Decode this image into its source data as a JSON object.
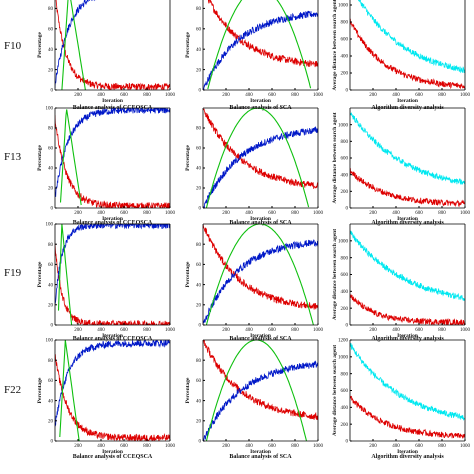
{
  "figure": {
    "row_labels": [
      "F10",
      "F13",
      "F19",
      "F22"
    ],
    "colors": {
      "exploration": "#dd0000",
      "exploitation": "#0018c8",
      "incremental_decremental": "#10c010",
      "diversity_ccesqsca": "#dd0000",
      "diversity_sca": "#00e8f0",
      "axes": "#000000"
    }
  },
  "chart_data": [
    {
      "id": "F10-ccesqsca",
      "type": "line",
      "row": "F10",
      "title": "Balance analysis of CCEQSCA",
      "xlabel": "Iteration",
      "ylabel": "Percentage",
      "xlim": [
        0,
        1000
      ],
      "ylim": [
        0,
        100
      ],
      "xticks": [
        200,
        400,
        600,
        800,
        1000
      ],
      "yticks": [
        0,
        20,
        40,
        60,
        80
      ],
      "series": [
        {
          "role": "exploration",
          "shape": "decay",
          "start": 95,
          "end": 3,
          "k": 11
        },
        {
          "role": "exploitation",
          "shape": "growth",
          "start": 5,
          "end": 97,
          "k": 8
        },
        {
          "role": "incremental_decremental",
          "shape": "spike",
          "peak_x": 120,
          "peak": 100,
          "width": 120
        }
      ]
    },
    {
      "id": "F10-sca",
      "type": "line",
      "row": "F10",
      "title": "Balance analysis of SCA",
      "xlabel": "Iteration",
      "ylabel": "Percentage",
      "xlim": [
        0,
        1000
      ],
      "ylim": [
        0,
        100
      ],
      "xticks": [
        200,
        400,
        600,
        800,
        1000
      ],
      "yticks": [
        0,
        20,
        40,
        60,
        80
      ],
      "series": [
        {
          "role": "exploration",
          "shape": "decay",
          "start": 100,
          "end": 22,
          "k": 3.2
        },
        {
          "role": "exploitation",
          "shape": "growth",
          "start": 0,
          "end": 78,
          "k": 3.2
        },
        {
          "role": "incremental_decremental",
          "shape": "hump",
          "x0": 40,
          "x1": 940,
          "peak": 100
        }
      ]
    },
    {
      "id": "F10-diversity",
      "type": "line",
      "row": "F10",
      "title": "Algorithm diversity analysis",
      "xlabel": "Iteration",
      "ylabel": "Average distance between search agent",
      "xlim": [
        0,
        1000
      ],
      "ylim": [
        0,
        1200
      ],
      "xticks": [
        200,
        400,
        600,
        800,
        1000
      ],
      "yticks": [
        0,
        200,
        400,
        600,
        800,
        1000
      ],
      "series": [
        {
          "role": "diversity_sca",
          "shape": "decay",
          "start": 1250,
          "end": 120,
          "k": 2.3
        },
        {
          "role": "diversity_ccesqsca",
          "shape": "decay",
          "start": 820,
          "end": 20,
          "k": 3.4
        }
      ]
    },
    {
      "id": "F13-ccesqsca",
      "type": "line",
      "row": "F13",
      "title": "Balance analysis of CCEQSCA",
      "xlabel": "Iteration",
      "ylabel": "Percentage",
      "xlim": [
        0,
        1000
      ],
      "ylim": [
        0,
        100
      ],
      "xticks": [
        200,
        400,
        600,
        800,
        1000
      ],
      "yticks": [
        0,
        20,
        40,
        60,
        80,
        100
      ],
      "series": [
        {
          "role": "exploration",
          "shape": "decay",
          "start": 90,
          "end": 2,
          "k": 10
        },
        {
          "role": "exploitation",
          "shape": "growth",
          "start": 10,
          "end": 98,
          "k": 9
        },
        {
          "role": "incremental_decremental",
          "shape": "spike",
          "peak_x": 100,
          "peak": 100,
          "width": 110
        }
      ]
    },
    {
      "id": "F13-sca",
      "type": "line",
      "row": "F13",
      "title": "Balance analysis of SCA",
      "xlabel": "Iteration",
      "ylabel": "Percentage",
      "xlim": [
        0,
        1000
      ],
      "ylim": [
        0,
        100
      ],
      "xticks": [
        200,
        400,
        600,
        800,
        1000
      ],
      "yticks": [
        0,
        20,
        40,
        60,
        80
      ],
      "series": [
        {
          "role": "exploration",
          "shape": "decay",
          "start": 100,
          "end": 18,
          "k": 3.0
        },
        {
          "role": "exploitation",
          "shape": "growth",
          "start": 0,
          "end": 82,
          "k": 3.0
        },
        {
          "role": "incremental_decremental",
          "shape": "hump",
          "x0": 30,
          "x1": 920,
          "peak": 100
        }
      ]
    },
    {
      "id": "F13-diversity",
      "type": "line",
      "row": "F13",
      "title": "Algorithm diversity analysis",
      "xlabel": "Iteration",
      "ylabel": "Average distance between search agent",
      "xlim": [
        0,
        1000
      ],
      "ylim": [
        0,
        1200
      ],
      "xticks": [
        200,
        400,
        600,
        800,
        1000
      ],
      "yticks": [
        0,
        200,
        400,
        600,
        800,
        1000
      ],
      "series": [
        {
          "role": "diversity_sca",
          "shape": "decay",
          "start": 1150,
          "end": 180,
          "k": 2.1
        },
        {
          "role": "diversity_ccesqsca",
          "shape": "decay",
          "start": 450,
          "end": 40,
          "k": 3.5
        }
      ]
    },
    {
      "id": "F19-ccesqsca",
      "type": "line",
      "row": "F19",
      "title": "Balance analysis of CCEQSCA",
      "xlabel": "Iteration",
      "ylabel": "Percentage",
      "xlim": [
        0,
        1000
      ],
      "ylim": [
        0,
        100
      ],
      "xticks": [
        200,
        400,
        600,
        800,
        1000
      ],
      "yticks": [
        0,
        20,
        40,
        60,
        80,
        100
      ],
      "series": [
        {
          "role": "exploration",
          "shape": "decay",
          "start": 80,
          "end": 1,
          "k": 16
        },
        {
          "role": "exploitation",
          "shape": "growth",
          "start": 20,
          "end": 99,
          "k": 16
        },
        {
          "role": "incremental_decremental",
          "shape": "spike",
          "peak_x": 60,
          "peak": 100,
          "width": 70
        }
      ]
    },
    {
      "id": "F19-sca",
      "type": "line",
      "row": "F19",
      "title": "Balance analysis of SCA",
      "xlabel": "Iteration",
      "ylabel": "Percentage",
      "xlim": [
        0,
        1000
      ],
      "ylim": [
        0,
        100
      ],
      "xticks": [
        200,
        400,
        600,
        800,
        1000
      ],
      "yticks": [
        0,
        20,
        40,
        60,
        80
      ],
      "series": [
        {
          "role": "exploration",
          "shape": "decay",
          "start": 100,
          "end": 15,
          "k": 3.3
        },
        {
          "role": "exploitation",
          "shape": "growth",
          "start": 0,
          "end": 85,
          "k": 3.3
        },
        {
          "role": "incremental_decremental",
          "shape": "hump",
          "x0": 30,
          "x1": 960,
          "peak": 100
        }
      ]
    },
    {
      "id": "F19-diversity",
      "type": "line",
      "row": "F19",
      "title": "Algorithm diversity analysis",
      "xlabel": "Iteration",
      "ylabel": "Average distance between search agent",
      "xlim": [
        0,
        1000
      ],
      "ylim": [
        0,
        1200
      ],
      "xticks": [
        200,
        400,
        600,
        800,
        1000
      ],
      "yticks": [
        0,
        200,
        400,
        600,
        800,
        1000
      ],
      "series": [
        {
          "role": "diversity_sca",
          "shape": "decay",
          "start": 1100,
          "end": 200,
          "k": 2.0
        },
        {
          "role": "diversity_ccesqsca",
          "shape": "decay",
          "start": 360,
          "end": 30,
          "k": 5.0
        }
      ]
    },
    {
      "id": "F22-ccesqsca",
      "type": "line",
      "row": "F22",
      "title": "Balance analysis of CCEQSCA",
      "xlabel": "Iteration",
      "ylabel": "Percentage",
      "xlim": [
        0,
        1000
      ],
      "ylim": [
        0,
        100
      ],
      "xticks": [
        200,
        400,
        600,
        800,
        1000
      ],
      "yticks": [
        0,
        20,
        40,
        60,
        80,
        100
      ],
      "series": [
        {
          "role": "exploration",
          "shape": "decay",
          "start": 85,
          "end": 3,
          "k": 9
        },
        {
          "role": "exploitation",
          "shape": "growth",
          "start": 15,
          "end": 97,
          "k": 9
        },
        {
          "role": "incremental_decremental",
          "shape": "spike",
          "peak_x": 90,
          "peak": 100,
          "width": 100
        }
      ]
    },
    {
      "id": "F22-sca",
      "type": "line",
      "row": "F22",
      "title": "Balance analysis of SCA",
      "xlabel": "Iteration",
      "ylabel": "Percentage",
      "xlim": [
        0,
        1000
      ],
      "ylim": [
        0,
        100
      ],
      "xticks": [
        200,
        400,
        600,
        800,
        1000
      ],
      "yticks": [
        0,
        20,
        40,
        60,
        80
      ],
      "series": [
        {
          "role": "exploration",
          "shape": "decay",
          "start": 100,
          "end": 20,
          "k": 3.0
        },
        {
          "role": "exploitation",
          "shape": "growth",
          "start": 0,
          "end": 80,
          "k": 3.0
        },
        {
          "role": "incremental_decremental",
          "shape": "hump",
          "x0": 30,
          "x1": 900,
          "peak": 100
        }
      ]
    },
    {
      "id": "F22-diversity",
      "type": "line",
      "row": "F22",
      "title": "Algorithm diversity analysis",
      "xlabel": "Iteration",
      "ylabel": "Average distance between search agent",
      "xlim": [
        0,
        1000
      ],
      "ylim": [
        0,
        1200
      ],
      "xticks": [
        200,
        400,
        600,
        800,
        1000
      ],
      "yticks": [
        0,
        200,
        400,
        600,
        800,
        1000,
        1200
      ],
      "series": [
        {
          "role": "diversity_sca",
          "shape": "decay",
          "start": 1150,
          "end": 170,
          "k": 2.2
        },
        {
          "role": "diversity_ccesqsca",
          "shape": "decay",
          "start": 520,
          "end": 40,
          "k": 3.3
        }
      ]
    }
  ]
}
